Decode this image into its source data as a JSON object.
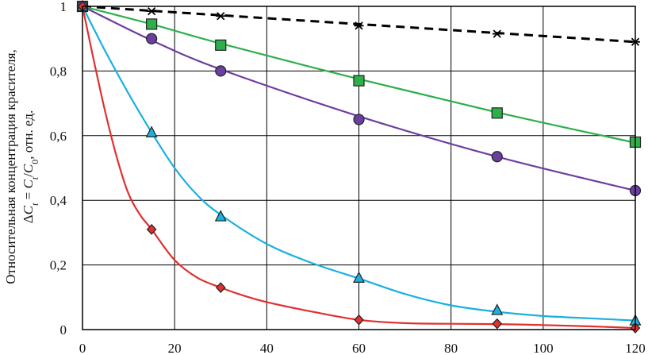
{
  "chart_data": {
    "type": "line",
    "title": "",
    "xlabel": "",
    "ylabel": {
      "line1": "Относительная концентрация красителя,",
      "line2": "ΔCt = Ct/C0, отн. ед."
    },
    "xlim": [
      0,
      120
    ],
    "ylim": [
      0,
      1
    ],
    "x_ticks": [
      0,
      20,
      40,
      60,
      80,
      100,
      120
    ],
    "x_tick_labels": [
      "0",
      "20",
      "40",
      "60",
      "80",
      "100",
      "120"
    ],
    "y_ticks": [
      0,
      0.2,
      0.4,
      0.6,
      0.8,
      1
    ],
    "y_tick_labels": [
      "0",
      "0,2",
      "0,4",
      "0,6",
      "0,8",
      "1"
    ],
    "grid": true,
    "legend": "none",
    "series": [
      {
        "color": "#000000",
        "marker": "asterisk",
        "dashed": true,
        "x": [
          0,
          15,
          30,
          60,
          90,
          120
        ],
        "y": [
          1.0,
          0.985,
          0.97,
          0.94,
          0.915,
          0.89
        ],
        "curve_x": [
          0,
          120
        ],
        "curve_y": [
          1.0,
          0.89
        ]
      },
      {
        "color": "#2db04b",
        "marker": "square",
        "dashed": false,
        "x": [
          0,
          15,
          30,
          60,
          90,
          120
        ],
        "y": [
          1.0,
          0.945,
          0.88,
          0.77,
          0.67,
          0.58
        ],
        "curve_x": [
          0,
          15,
          30,
          60,
          90,
          120
        ],
        "curve_y": [
          1.0,
          0.945,
          0.885,
          0.775,
          0.672,
          0.578
        ]
      },
      {
        "color": "#6b3fa0",
        "marker": "circle",
        "dashed": false,
        "x": [
          0,
          15,
          30,
          60,
          90,
          120
        ],
        "y": [
          1.0,
          0.9,
          0.8,
          0.65,
          0.535,
          0.43
        ],
        "curve_x": [
          0,
          15,
          30,
          60,
          90,
          120
        ],
        "curve_y": [
          1.0,
          0.895,
          0.805,
          0.66,
          0.535,
          0.43
        ]
      },
      {
        "color": "#1ab0e0",
        "marker": "triangle",
        "dashed": false,
        "x": [
          0,
          15,
          30,
          60,
          90,
          120
        ],
        "y": [
          1.0,
          0.61,
          0.35,
          0.16,
          0.06,
          0.028
        ],
        "curve_x": [
          0,
          5,
          10,
          15,
          20,
          25,
          30,
          40,
          50,
          60,
          70,
          80,
          90,
          100,
          110,
          120
        ],
        "curve_y": [
          1.0,
          0.86,
          0.73,
          0.61,
          0.5,
          0.415,
          0.355,
          0.265,
          0.205,
          0.158,
          0.11,
          0.075,
          0.055,
          0.042,
          0.035,
          0.028
        ]
      },
      {
        "color": "#e03030",
        "marker": "diamond",
        "dashed": false,
        "x": [
          0,
          15,
          30,
          60,
          90,
          120
        ],
        "y": [
          1.0,
          0.31,
          0.13,
          0.03,
          0.018,
          0.005
        ],
        "curve_x": [
          0,
          2.5,
          5,
          7.5,
          10,
          12.5,
          15,
          20,
          25,
          30,
          35,
          40,
          50,
          60,
          70,
          80,
          90,
          100,
          110,
          120
        ],
        "curve_y": [
          1.0,
          0.83,
          0.67,
          0.53,
          0.42,
          0.355,
          0.31,
          0.215,
          0.16,
          0.13,
          0.105,
          0.085,
          0.055,
          0.03,
          0.02,
          0.018,
          0.017,
          0.014,
          0.01,
          0.005
        ]
      }
    ]
  }
}
